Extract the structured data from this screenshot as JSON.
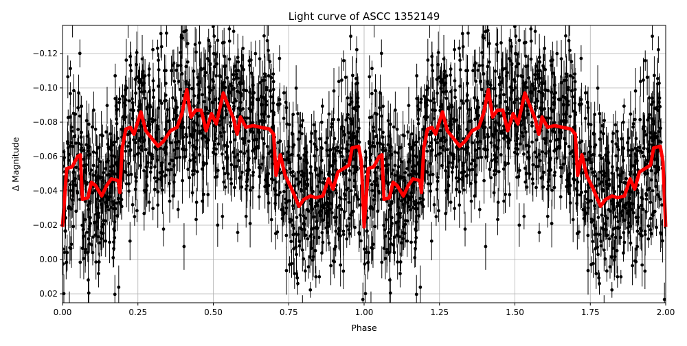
{
  "chart_data": {
    "type": "scatter",
    "title": "Light curve of ASCC 1352149",
    "xlabel": "Phase",
    "ylabel": "Δ Magnitude",
    "xlim": [
      0,
      2
    ],
    "ylim": [
      0.0252,
      -0.1364
    ],
    "y_inverted": true,
    "grid": true,
    "xticks": [
      0,
      0.25,
      0.5,
      0.75,
      1.0,
      1.25,
      1.5,
      1.75,
      2.0
    ],
    "xtick_labels": [
      "0.00",
      "0.25",
      "0.50",
      "0.75",
      "1.00",
      "1.25",
      "1.50",
      "1.75",
      "2.00"
    ],
    "yticks": [
      -0.12,
      -0.1,
      -0.08,
      -0.06,
      -0.04,
      -0.02,
      0.0,
      0.02
    ],
    "ytick_labels": [
      "−0.12",
      "−0.10",
      "−0.08",
      "−0.06",
      "−0.04",
      "−0.02",
      "0.00",
      "0.02"
    ],
    "points_color": "#000000",
    "curve_color": "#ff0000",
    "phase_repeated_twice": true,
    "binned_curve": {
      "phase": [
        0,
        0.014,
        0.032,
        0.05,
        0.059,
        0.066,
        0.084,
        0.096,
        0.11,
        0.13,
        0.146,
        0.162,
        0.185,
        0.19,
        0.198,
        0.21,
        0.225,
        0.237,
        0.26,
        0.276,
        0.294,
        0.317,
        0.335,
        0.358,
        0.38,
        0.396,
        0.412,
        0.426,
        0.442,
        0.46,
        0.476,
        0.494,
        0.51,
        0.533,
        0.551,
        0.567,
        0.579,
        0.59,
        0.608,
        0.631,
        0.658,
        0.686,
        0.7,
        0.708,
        0.722,
        0.738,
        0.76,
        0.784,
        0.8,
        0.822,
        0.84,
        0.863,
        0.882,
        0.897,
        0.913,
        0.932,
        0.95,
        0.96,
        0.982,
        0.991,
        1.0
      ],
      "mag": [
        -0.019,
        -0.053,
        -0.054,
        -0.06,
        -0.061,
        -0.035,
        -0.036,
        -0.045,
        -0.043,
        -0.037,
        -0.043,
        -0.047,
        -0.046,
        -0.039,
        -0.065,
        -0.076,
        -0.077,
        -0.073,
        -0.086,
        -0.075,
        -0.071,
        -0.066,
        -0.069,
        -0.075,
        -0.077,
        -0.085,
        -0.099,
        -0.083,
        -0.087,
        -0.087,
        -0.075,
        -0.085,
        -0.079,
        -0.097,
        -0.089,
        -0.082,
        -0.073,
        -0.083,
        -0.077,
        -0.078,
        -0.077,
        -0.076,
        -0.073,
        -0.049,
        -0.061,
        -0.049,
        -0.041,
        -0.031,
        -0.035,
        -0.037,
        -0.036,
        -0.037,
        -0.047,
        -0.041,
        -0.051,
        -0.053,
        -0.055,
        -0.065,
        -0.066,
        -0.057,
        -0.019
      ]
    }
  }
}
